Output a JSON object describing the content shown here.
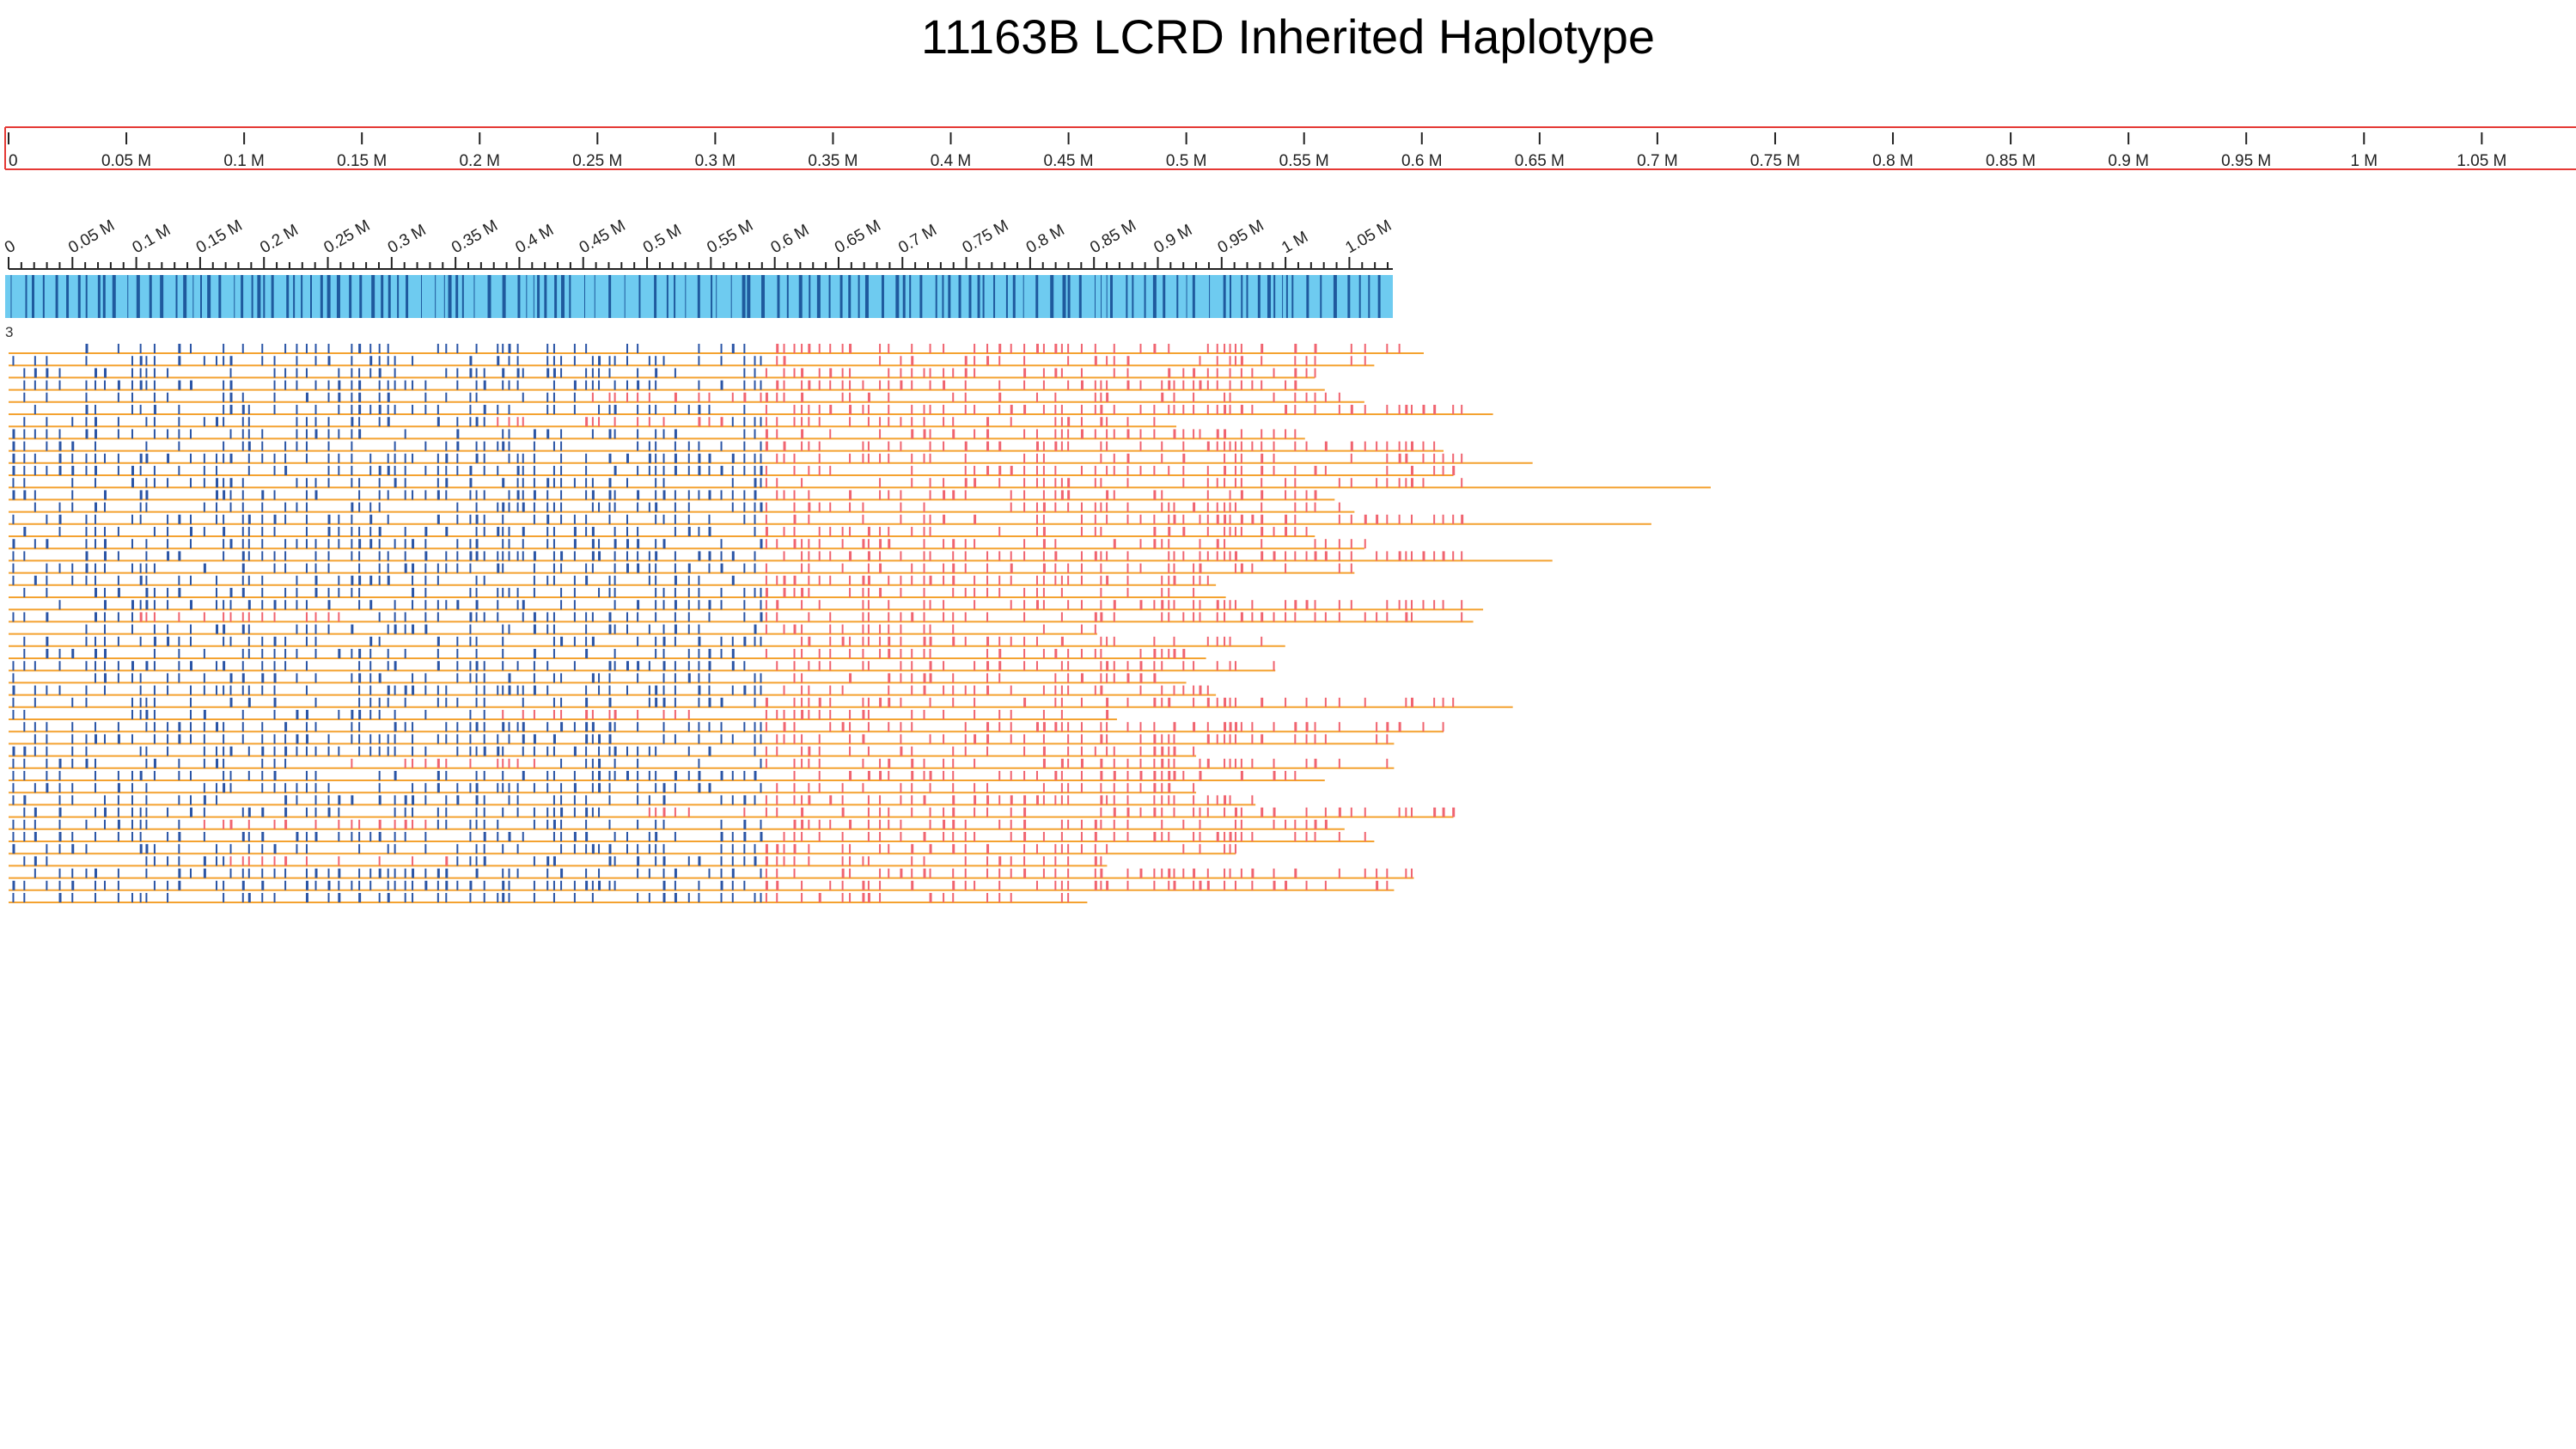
{
  "title": "11163B LCRD Inherited Haplotype",
  "colors": {
    "ruler_border": "#e53935",
    "overview_bar": "#6ecbf0",
    "overview_snp": "#1f5a9e",
    "read_line": "#f4a230",
    "snp_match": "#2b55a6",
    "snp_mismatch": "#f06470",
    "axis": "#222222"
  },
  "chart_data": {
    "type": "genome-track",
    "title": "11163B LCRD Inherited Haplotype",
    "xlabel": "",
    "ylabel": "",
    "ruler": {
      "domain": [
        0,
        1.09
      ],
      "ticks": [
        "0",
        "0.05 M",
        "0.1 M",
        "0.15 M",
        "0.2 M",
        "0.25 M",
        "0.3 M",
        "0.35 M",
        "0.4 M",
        "0.45 M",
        "0.5 M",
        "0.55 M",
        "0.6 M",
        "0.65 M",
        "0.7 M",
        "0.75 M",
        "0.8 M",
        "0.85 M",
        "0.9 M",
        "0.95 M",
        "1 M",
        "1.05 M"
      ]
    },
    "overview": {
      "domain": [
        0,
        1.08
      ],
      "ticks": [
        "0",
        "0.05 M",
        "0.1 M",
        "0.15 M",
        "0.2 M",
        "0.25 M",
        "0.3 M",
        "0.35 M",
        "0.4 M",
        "0.45 M",
        "0.5 M",
        "0.55 M",
        "0.6 M",
        "0.65 M",
        "0.7 M",
        "0.75 M",
        "0.8 M",
        "0.85 M",
        "0.9 M",
        "0.95 M",
        "1 M",
        "1.05 M"
      ]
    },
    "track_label": "3",
    "reads": [
      {
        "end": 0.715,
        "diverge": 0.59
      },
      {
        "end": 0.69,
        "diverge": 0.59
      },
      {
        "end": 0.66,
        "diverge": 0.59
      },
      {
        "end": 0.665,
        "diverge": 0.59
      },
      {
        "end": 0.685,
        "diverge": 0.45
      },
      {
        "end": 0.75,
        "diverge": 0.59
      },
      {
        "end": 0.59,
        "diverge": 0.38
      },
      {
        "end": 0.655,
        "diverge": 0.59
      },
      {
        "end": 0.725,
        "diverge": 0.59
      },
      {
        "end": 0.77,
        "diverge": 0.59
      },
      {
        "end": 0.73,
        "diverge": 0.59
      },
      {
        "end": 0.86,
        "diverge": 0.59
      },
      {
        "end": 0.67,
        "diverge": 0.59
      },
      {
        "end": 0.68,
        "diverge": 0.59
      },
      {
        "end": 0.83,
        "diverge": 0.59
      },
      {
        "end": 0.66,
        "diverge": 0.59
      },
      {
        "end": 0.685,
        "diverge": 0.59
      },
      {
        "end": 0.78,
        "diverge": 0.59
      },
      {
        "end": 0.68,
        "diverge": 0.59
      },
      {
        "end": 0.61,
        "diverge": 0.59
      },
      {
        "end": 0.615,
        "diverge": 0.59
      },
      {
        "end": 0.745,
        "diverge": 0.59
      },
      {
        "end": 0.74,
        "diverge": 0.1
      },
      {
        "end": 0.55,
        "diverge": 0.59
      },
      {
        "end": 0.645,
        "diverge": 0.59
      },
      {
        "end": 0.605,
        "diverge": 0.59
      },
      {
        "end": 0.64,
        "diverge": 0.59
      },
      {
        "end": 0.595,
        "diverge": 0.59
      },
      {
        "end": 0.61,
        "diverge": 0.59
      },
      {
        "end": 0.76,
        "diverge": 0.59
      },
      {
        "end": 0.56,
        "diverge": 0.38
      },
      {
        "end": 0.725,
        "diverge": 0.59
      },
      {
        "end": 0.7,
        "diverge": 0.59
      },
      {
        "end": 0.6,
        "diverge": 0.59
      },
      {
        "end": 0.7,
        "diverge": 0.25
      },
      {
        "end": 0.665,
        "diverge": 0.59
      },
      {
        "end": 0.6,
        "diverge": 0.59
      },
      {
        "end": 0.63,
        "diverge": 0.59
      },
      {
        "end": 0.73,
        "diverge": 0.5
      },
      {
        "end": 0.675,
        "diverge": 0.15
      },
      {
        "end": 0.69,
        "diverge": 0.59
      },
      {
        "end": 0.62,
        "diverge": 0.59
      },
      {
        "end": 0.555,
        "diverge": 0.17
      },
      {
        "end": 0.71,
        "diverge": 0.59
      },
      {
        "end": 0.7,
        "diverge": 0.59
      },
      {
        "end": 0.545,
        "diverge": 0.59
      }
    ]
  }
}
